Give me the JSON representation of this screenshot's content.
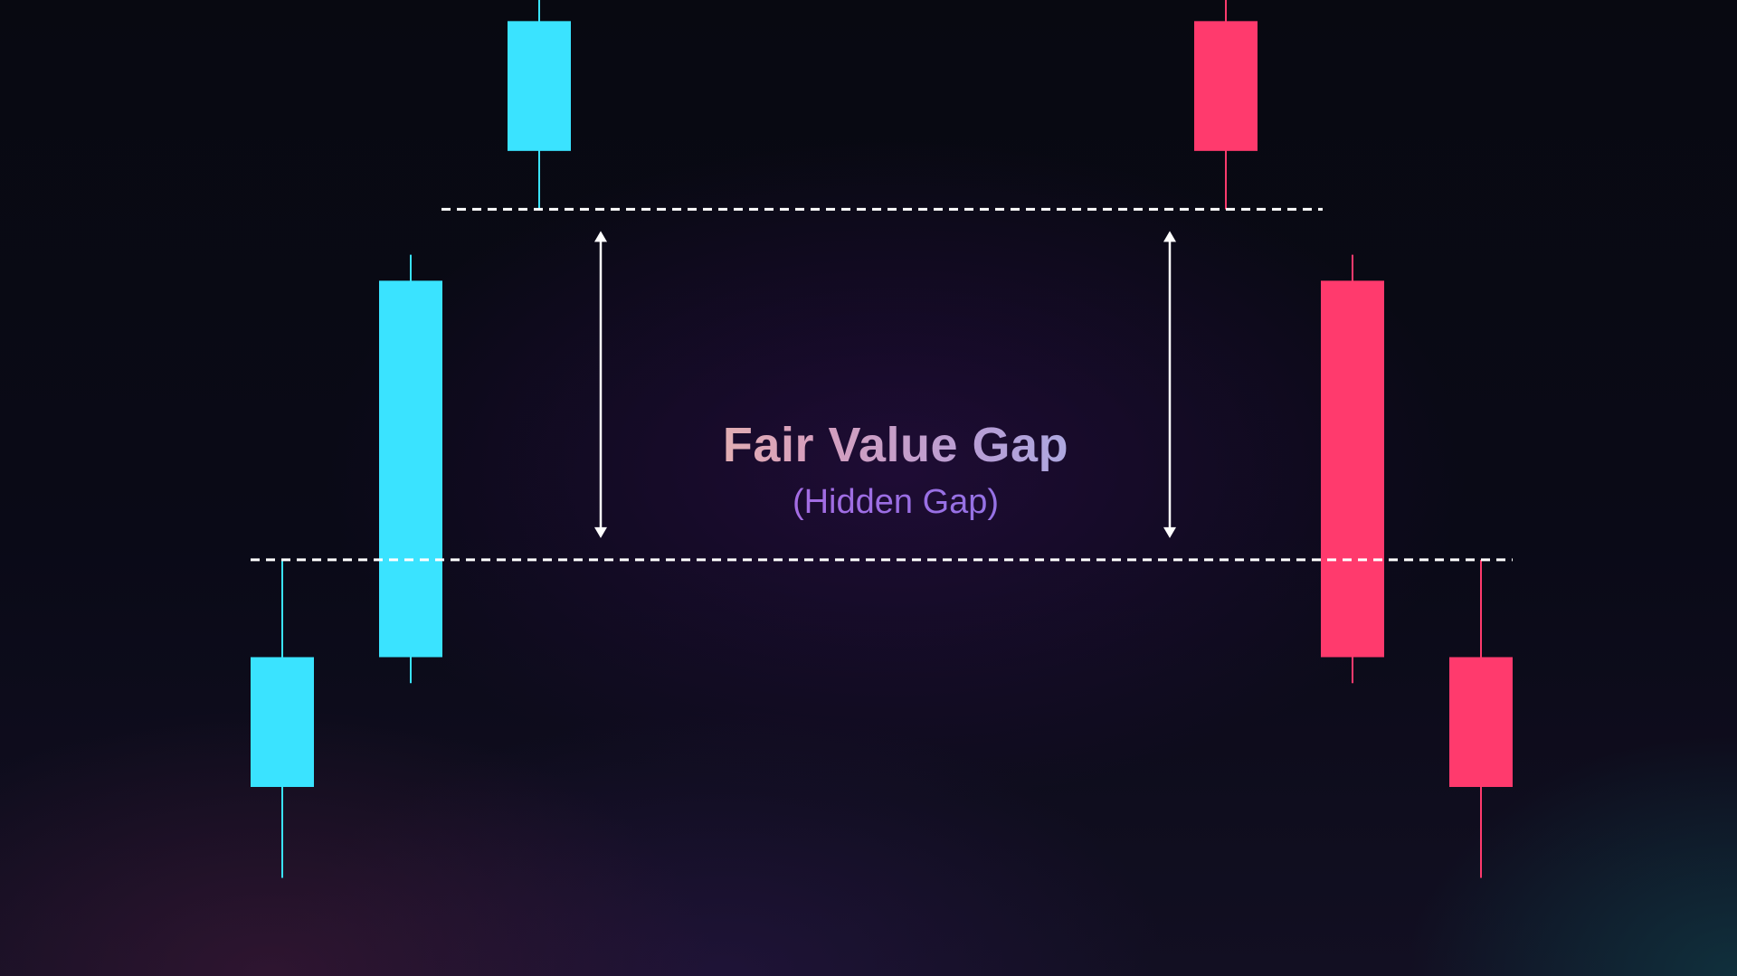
{
  "diagram": {
    "title": "Fair Value Gap",
    "subtitle": "(Hidden Gap)"
  },
  "colors": {
    "bullish": "#3ae3ff",
    "bearish": "#ff3a6d",
    "guide": "#ffffff"
  },
  "candles": {
    "bullish": [
      {
        "role": "candle-1",
        "open": 0.0,
        "close": 1.0,
        "high": 1.75,
        "low": -0.7
      },
      {
        "role": "candle-2",
        "open": 1.0,
        "close": 3.9,
        "high": 4.1,
        "low": 0.8
      },
      {
        "role": "candle-3",
        "open": 4.9,
        "close": 5.9,
        "high": 6.4,
        "low": 4.45
      }
    ],
    "bearish": [
      {
        "role": "candle-1",
        "open": 5.9,
        "close": 4.9,
        "high": 6.4,
        "low": 4.45
      },
      {
        "role": "candle-2",
        "open": 3.9,
        "close": 1.0,
        "high": 4.1,
        "low": 0.8
      },
      {
        "role": "candle-3",
        "open": 1.0,
        "close": 0.0,
        "high": 1.75,
        "low": -0.7
      }
    ]
  },
  "gap_levels": {
    "upper": 4.45,
    "lower": 1.75
  },
  "icons": {
    "arrow": "double-headed-vertical-arrow-icon"
  }
}
